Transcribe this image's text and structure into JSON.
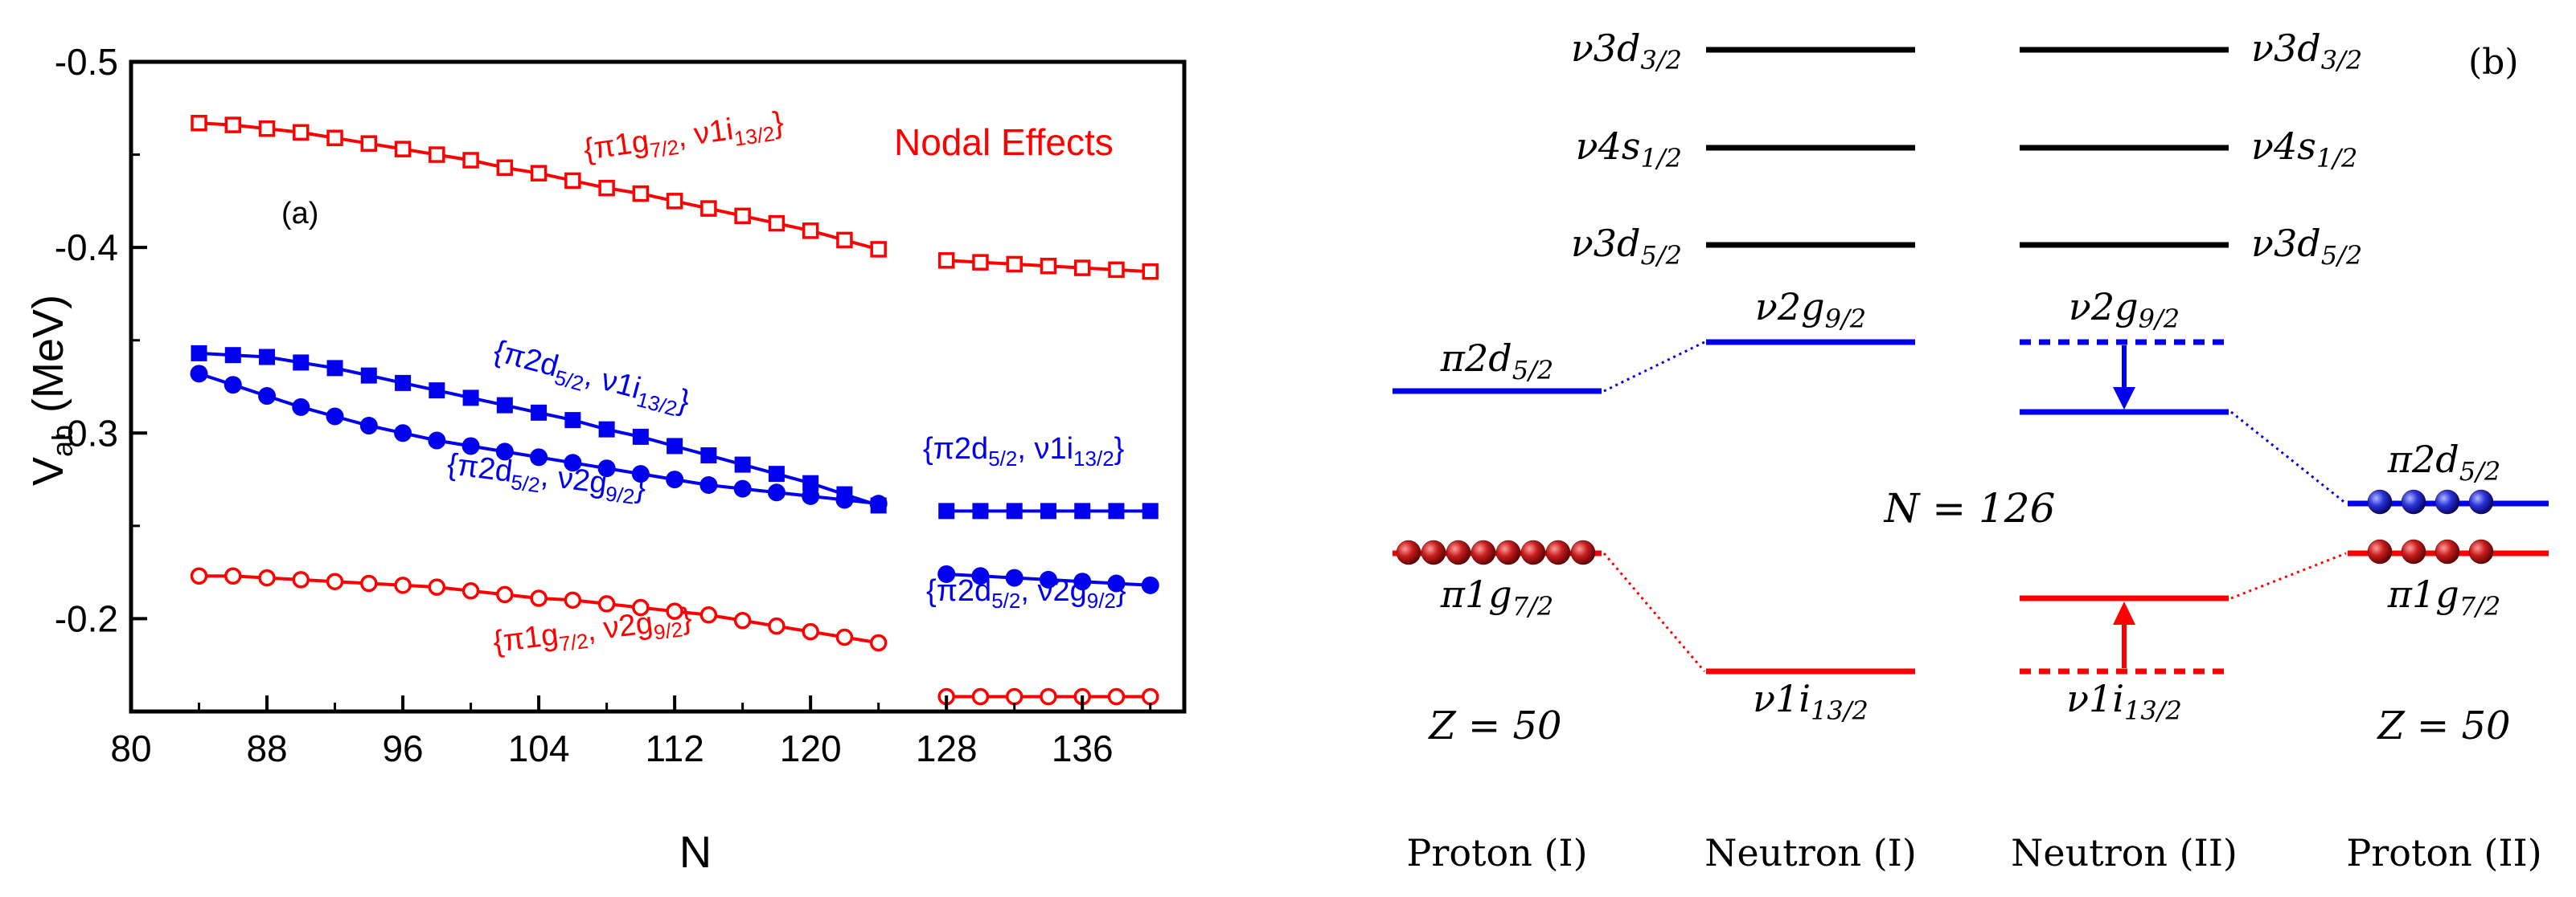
{
  "chart_data": [
    {
      "panel": "(a)",
      "type": "line",
      "xlabel": "N",
      "ylabel_main": "V",
      "ylabel_sub": "ab",
      "ylabel_unit": " (MeV)",
      "title_annotation": "Nodal Effects",
      "xlim": [
        80,
        142
      ],
      "ylim": [
        -0.5,
        -0.15
      ],
      "xticks": [
        80,
        88,
        96,
        104,
        112,
        120,
        128,
        136
      ],
      "yticks": [
        -0.5,
        -0.4,
        -0.3,
        -0.2
      ],
      "ytick_labels": [
        "-0.5",
        "-0.4",
        "-0.3",
        "-0.2"
      ],
      "colors": {
        "red": "#ff0000",
        "blue": "#0000ee"
      },
      "series": [
        {
          "name": "{π1g7/2, ν1i13/2}",
          "label_parts": [
            "{π1g",
            "7/2",
            ", ν1i",
            "13/2",
            "}"
          ],
          "color": "red",
          "marker": "open-square",
          "segments": [
            {
              "x": [
                84,
                86,
                88,
                90,
                92,
                94,
                96,
                98,
                100,
                102,
                104,
                106,
                108,
                110,
                112,
                114,
                116,
                118,
                120,
                122,
                124
              ],
              "y": [
                -0.467,
                -0.466,
                -0.464,
                -0.462,
                -0.459,
                -0.456,
                -0.453,
                -0.45,
                -0.447,
                -0.443,
                -0.44,
                -0.436,
                -0.432,
                -0.429,
                -0.425,
                -0.421,
                -0.417,
                -0.413,
                -0.409,
                -0.404,
                -0.399
              ]
            },
            {
              "x": [
                128,
                130,
                132,
                134,
                136,
                138,
                140
              ],
              "y": [
                -0.393,
                -0.392,
                -0.391,
                -0.39,
                -0.389,
                -0.388,
                -0.387
              ]
            }
          ]
        },
        {
          "name": "{π2d5/2, ν1i13/2}",
          "label_parts": [
            "{π2d",
            "5/2",
            ", ν1i",
            "13/2",
            "}"
          ],
          "color": "blue",
          "marker": "filled-square",
          "segments": [
            {
              "x": [
                84,
                86,
                88,
                90,
                92,
                94,
                96,
                98,
                100,
                102,
                104,
                106,
                108,
                110,
                112,
                114,
                116,
                118,
                120,
                122,
                124
              ],
              "y": [
                -0.343,
                -0.342,
                -0.341,
                -0.338,
                -0.335,
                -0.331,
                -0.327,
                -0.323,
                -0.319,
                -0.315,
                -0.311,
                -0.307,
                -0.302,
                -0.298,
                -0.293,
                -0.288,
                -0.283,
                -0.278,
                -0.273,
                -0.267,
                -0.261
              ]
            },
            {
              "x": [
                128,
                130,
                132,
                134,
                136,
                138,
                140
              ],
              "y": [
                -0.258,
                -0.258,
                -0.258,
                -0.258,
                -0.258,
                -0.258,
                -0.258
              ]
            }
          ]
        },
        {
          "name": "{π2d5/2, ν2g9/2}",
          "label_parts": [
            "{π2d",
            "5/2",
            ", ν2g",
            "9/2",
            "}"
          ],
          "color": "blue",
          "marker": "filled-circle",
          "segments": [
            {
              "x": [
                84,
                86,
                88,
                90,
                92,
                94,
                96,
                98,
                100,
                102,
                104,
                106,
                108,
                110,
                112,
                114,
                116,
                118,
                120,
                122,
                124
              ],
              "y": [
                -0.332,
                -0.326,
                -0.32,
                -0.314,
                -0.309,
                -0.304,
                -0.3,
                -0.296,
                -0.293,
                -0.29,
                -0.287,
                -0.284,
                -0.281,
                -0.278,
                -0.275,
                -0.272,
                -0.27,
                -0.268,
                -0.266,
                -0.264,
                -0.262
              ]
            },
            {
              "x": [
                128,
                130,
                132,
                134,
                136,
                138,
                140
              ],
              "y": [
                -0.224,
                -0.223,
                -0.222,
                -0.221,
                -0.22,
                -0.219,
                -0.218
              ]
            }
          ]
        },
        {
          "name": "{π1g7/2, ν2g9/2}",
          "label_parts": [
            "{π1g",
            "7/2",
            ", ν2g",
            "9/2",
            "}"
          ],
          "color": "red",
          "marker": "open-circle",
          "segments": [
            {
              "x": [
                84,
                86,
                88,
                90,
                92,
                94,
                96,
                98,
                100,
                102,
                104,
                106,
                108,
                110,
                112,
                114,
                116,
                118,
                120,
                122,
                124
              ],
              "y": [
                -0.223,
                -0.223,
                -0.222,
                -0.221,
                -0.22,
                -0.219,
                -0.218,
                -0.217,
                -0.215,
                -0.213,
                -0.211,
                -0.21,
                -0.208,
                -0.206,
                -0.204,
                -0.202,
                -0.199,
                -0.196,
                -0.193,
                -0.19,
                -0.187
              ]
            },
            {
              "x": [
                128,
                130,
                132,
                134,
                136,
                138,
                140
              ],
              "y": [
                -0.158,
                -0.158,
                -0.158,
                -0.158,
                -0.158,
                -0.158,
                -0.158
              ]
            }
          ]
        }
      ],
      "annotations": [
        {
          "parts": [
            "{π2d",
            "5/2",
            ", ν1i",
            "13/2",
            "}"
          ],
          "color": "blue"
        },
        {
          "parts": [
            "{π2d",
            "5/2",
            ", ν2g",
            "9/2",
            "}"
          ],
          "color": "blue"
        }
      ]
    },
    {
      "panel": "(b)",
      "type": "level-scheme",
      "columns": [
        "Proton (I)",
        "Neutron (I)",
        "Neutron (II)",
        "Proton (II)"
      ],
      "center_label": "N = 126",
      "z_left": "Z = 50",
      "z_right": "Z = 50",
      "upper_levels": [
        {
          "name": "ν3d3/2",
          "main": "ν3d",
          "sub": "3/2"
        },
        {
          "name": "ν4s1/2",
          "main": "ν4s",
          "sub": "1/2"
        },
        {
          "name": "ν3d5/2",
          "main": "ν3d",
          "sub": "5/2"
        }
      ],
      "labels": {
        "pi2d": {
          "main": "π2d",
          "sub": "5/2"
        },
        "pi1g": {
          "main": "π1g",
          "sub": "7/2"
        },
        "nu2g": {
          "main": "ν2g",
          "sub": "9/2"
        },
        "nu1i": {
          "main": "ν1i",
          "sub": "13/2"
        }
      },
      "occupancy": {
        "pi1g_proton_I": 8,
        "pi2d_proton_II": 4,
        "pi1g_proton_II": 4
      }
    }
  ]
}
